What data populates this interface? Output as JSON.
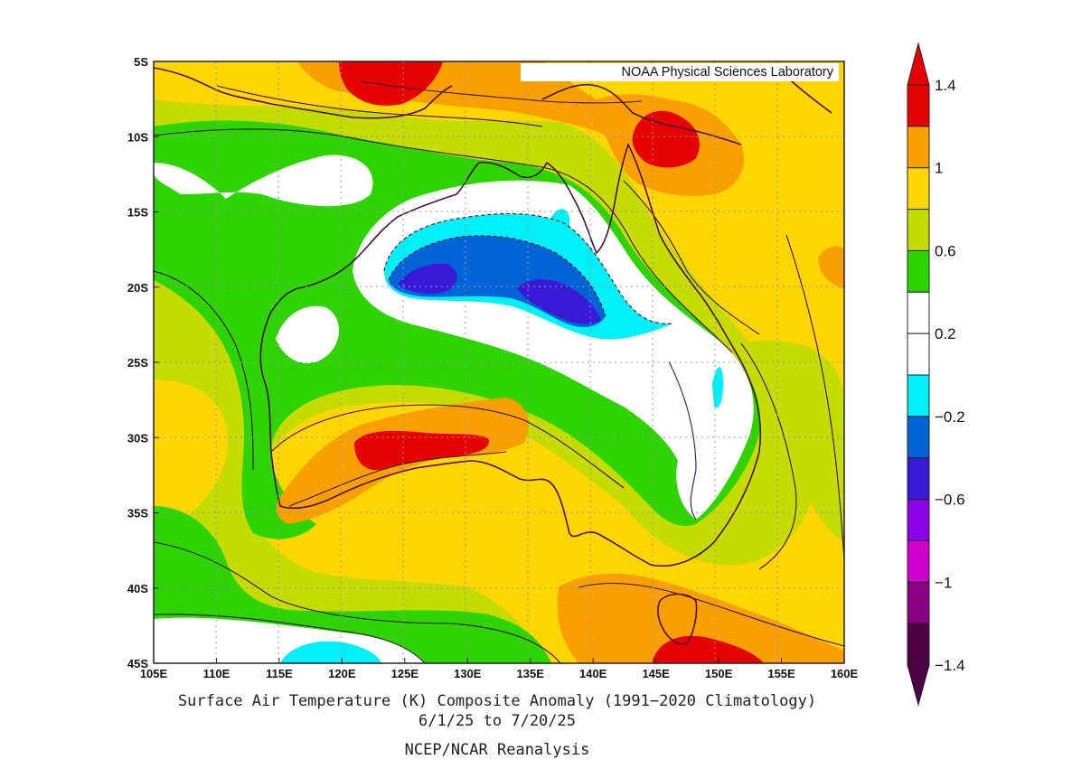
{
  "map": {
    "credit": "NOAA Physical Sciences Laboratory",
    "lon_labels": [
      "105E",
      "110E",
      "115E",
      "120E",
      "125E",
      "130E",
      "135E",
      "140E",
      "145E",
      "150E",
      "155E",
      "160E"
    ],
    "lat_labels": [
      "5S",
      "10S",
      "15S",
      "20S",
      "25S",
      "30S",
      "35S",
      "40S",
      "45S"
    ],
    "lon_range": [
      105,
      160
    ],
    "lat_range": [
      -5,
      -45
    ],
    "grid": true
  },
  "colorbar": {
    "labels": [
      "1.4",
      "1",
      "0.6",
      "0.2",
      "−0.2",
      "−0.6",
      "−1",
      "−1.4"
    ],
    "colors": [
      "#e60000",
      "#f9a000",
      "#ffd600",
      "#c6dc00",
      "#2ed400",
      "#ffffff",
      "#ffffff",
      "#00f0f8",
      "#0064d8",
      "#3a1ad8",
      "#8c00e6",
      "#d000d0",
      "#8a0082",
      "#4d0046"
    ]
  },
  "caption": {
    "line1": "Surface Air Temperature (K) Composite Anomaly (1991−2020 Climatology)",
    "line2": "6/1/25   to 7/20/25",
    "line3": "NCEP/NCAR Reanalysis"
  }
}
